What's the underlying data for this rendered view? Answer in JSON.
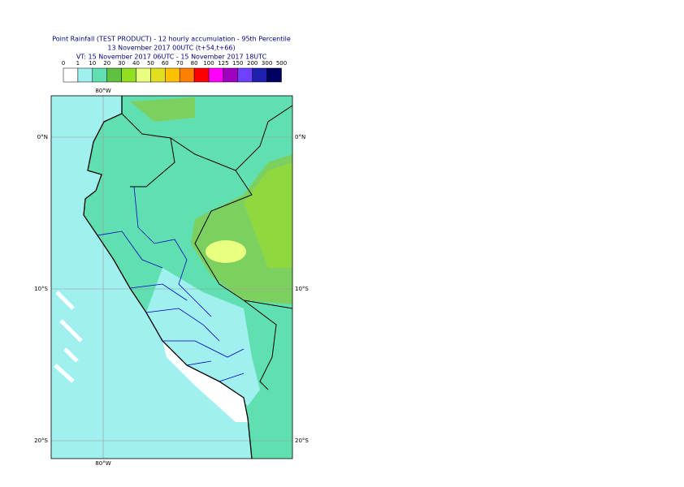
{
  "header": {
    "title": "Point Rainfall (TEST PRODUCT) - 12 hourly accumulation - 95th Percentile",
    "base_time": "13 November 2017 00UTC (t+54,t+66)",
    "valid_time": "VT: 15 November 2017 06UTC - 15 November 2017 18UTC"
  },
  "legend": {
    "thresholds": [
      0,
      1,
      10,
      20,
      30,
      40,
      50,
      60,
      70,
      80,
      100,
      125,
      150,
      200,
      300,
      500
    ],
    "colors": [
      "#ffffff",
      "#a0f0f0",
      "#60e0b0",
      "#60c040",
      "#90e020",
      "#e8ff80",
      "#e0e020",
      "#ffc000",
      "#ff8000",
      "#ff0000",
      "#ff00ff",
      "#a000c0",
      "#7040ff",
      "#2020b0",
      "#000060"
    ]
  },
  "map": {
    "lon_label": "80°W",
    "lat_labels": [
      "0°N",
      "10°S",
      "20°S"
    ]
  }
}
